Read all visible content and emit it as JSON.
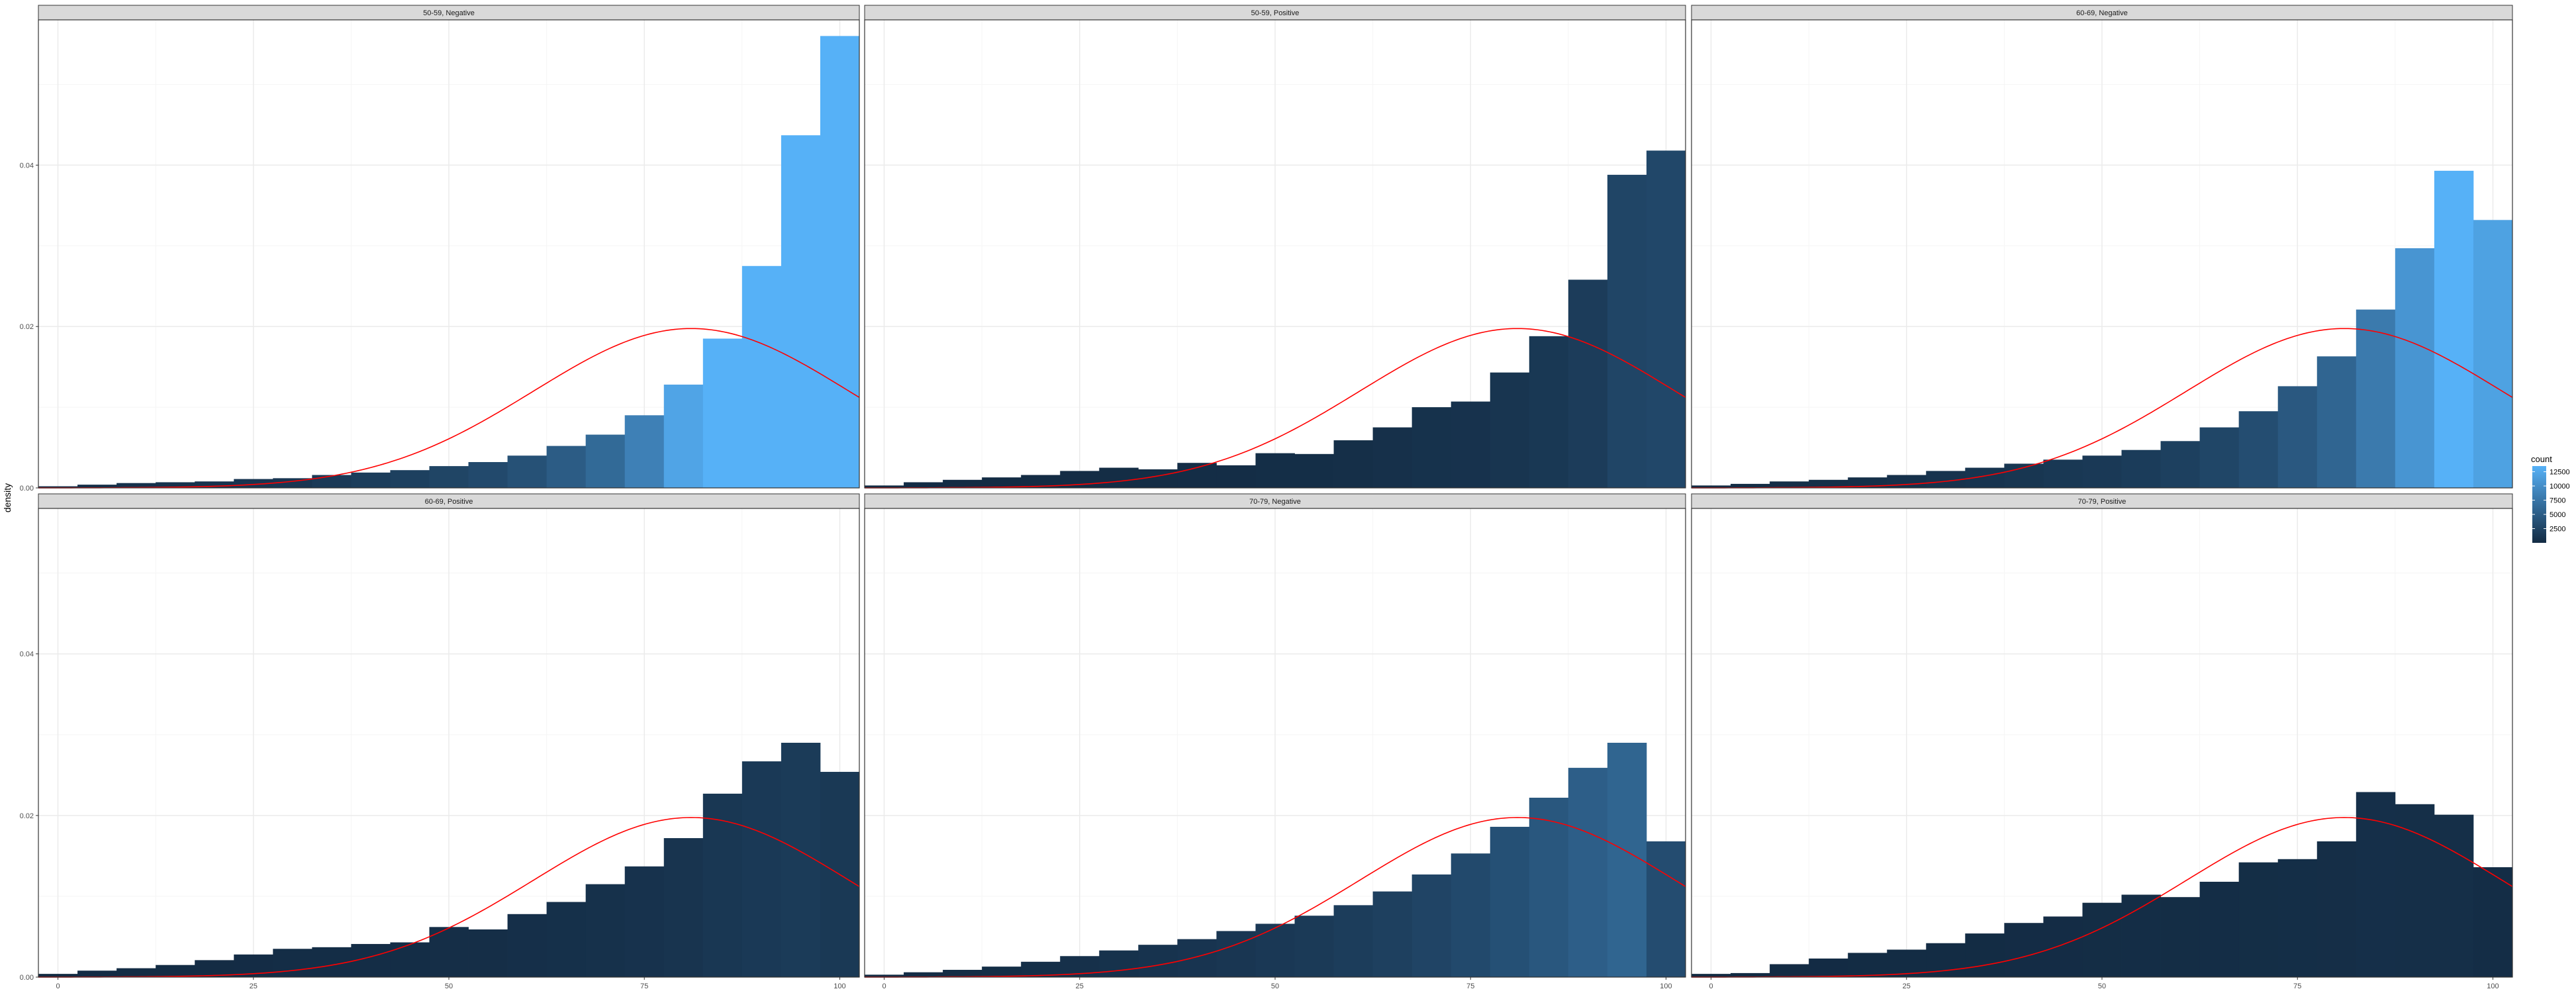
{
  "chart_data": {
    "type": "bar",
    "layout": "facet grid, 2 rows x 3 columns, shared axes",
    "ylabel": "density",
    "xlabel": "",
    "xlim": [
      -2.5,
      102.5
    ],
    "ylim": [
      0,
      0.058
    ],
    "x_ticks": [
      "0",
      "25",
      "50",
      "75",
      "100"
    ],
    "y_ticks": [
      "0.00",
      "0.02",
      "0.04"
    ],
    "bins": [
      0,
      5,
      10,
      15,
      20,
      25,
      30,
      35,
      40,
      45,
      50,
      55,
      60,
      65,
      70,
      75,
      80,
      85,
      90,
      95,
      100
    ],
    "bin_width": 5,
    "grid": true,
    "panels": [
      {
        "label": "50-59, Negative",
        "density": [
          0.0002,
          0.0004,
          0.0006,
          0.0007,
          0.0008,
          0.0011,
          0.0012,
          0.0016,
          0.0019,
          0.0022,
          0.0027,
          0.0032,
          0.004,
          0.0052,
          0.0066,
          0.009,
          0.0128,
          0.0185,
          0.0275,
          0.0437,
          0.056
        ],
        "count": [
          190,
          380,
          570,
          670,
          770,
          1050,
          1150,
          1530,
          1820,
          2100,
          2580,
          3060,
          3830,
          4970,
          6310,
          8610,
          12240,
          17690,
          26290,
          41780,
          53540
        ]
      },
      {
        "label": "50-59, Positive",
        "density": [
          0.0003,
          0.0007,
          0.001,
          0.0013,
          0.0016,
          0.0021,
          0.0025,
          0.0023,
          0.0031,
          0.0028,
          0.0043,
          0.0042,
          0.0059,
          0.0075,
          0.01,
          0.0107,
          0.0143,
          0.0188,
          0.0258,
          0.0388,
          0.0418
        ],
        "count": [
          20,
          50,
          70,
          90,
          110,
          140,
          170,
          160,
          210,
          190,
          290,
          280,
          400,
          510,
          680,
          730,
          970,
          1280,
          1750,
          2640,
          2840
        ]
      },
      {
        "label": "60-69, Negative",
        "density": [
          0.0003,
          0.0005,
          0.0008,
          0.001,
          0.0013,
          0.0016,
          0.0021,
          0.0025,
          0.003,
          0.0035,
          0.004,
          0.0047,
          0.0058,
          0.0075,
          0.0095,
          0.0126,
          0.0163,
          0.0221,
          0.0297,
          0.0393,
          0.0332
        ],
        "count": [
          110,
          180,
          290,
          360,
          470,
          580,
          760,
          900,
          1080,
          1260,
          1440,
          1690,
          2090,
          2700,
          3420,
          4540,
          5870,
          7960,
          10690,
          14150,
          11950
        ]
      },
      {
        "label": "60-69, Positive",
        "density": [
          0.0004,
          0.0008,
          0.0011,
          0.0015,
          0.0021,
          0.0028,
          0.0035,
          0.0037,
          0.0041,
          0.0043,
          0.0062,
          0.0059,
          0.0078,
          0.0093,
          0.0115,
          0.0137,
          0.0172,
          0.0227,
          0.0267,
          0.029,
          0.0254
        ],
        "count": [
          20,
          40,
          60,
          80,
          110,
          150,
          190,
          200,
          220,
          230,
          330,
          320,
          420,
          500,
          620,
          740,
          930,
          1230,
          1440,
          1570,
          1370
        ]
      },
      {
        "label": "70-79, Negative",
        "density": [
          0.0003,
          0.0006,
          0.0009,
          0.0013,
          0.0019,
          0.0026,
          0.0033,
          0.004,
          0.0047,
          0.0057,
          0.0066,
          0.0076,
          0.0089,
          0.0106,
          0.0127,
          0.0153,
          0.0186,
          0.0222,
          0.0259,
          0.029,
          0.0168
        ],
        "count": [
          60,
          120,
          180,
          260,
          380,
          520,
          660,
          800,
          940,
          1140,
          1320,
          1520,
          1780,
          2120,
          2540,
          3060,
          3720,
          4440,
          5180,
          5800,
          3360
        ]
      },
      {
        "label": "70-79, Positive",
        "density": [
          0.0004,
          0.0005,
          0.0016,
          0.0023,
          0.003,
          0.0034,
          0.0042,
          0.0054,
          0.0067,
          0.0075,
          0.0092,
          0.0102,
          0.0099,
          0.0118,
          0.0142,
          0.0146,
          0.0168,
          0.0229,
          0.0214,
          0.0201,
          0.0136
        ],
        "count": [
          10,
          10,
          30,
          40,
          60,
          60,
          80,
          100,
          120,
          140,
          170,
          190,
          180,
          220,
          260,
          270,
          310,
          420,
          390,
          370,
          250
        ]
      }
    ],
    "overlay_curve": {
      "type": "normal density",
      "color": "#ff0000",
      "mean": 81,
      "sd": 20.2,
      "x_range": [
        -2.5,
        102.5
      ]
    },
    "fill_scale": {
      "legend_title": "count",
      "legend_labels": [
        "12500",
        "10000",
        "7500",
        "5000",
        "2500"
      ],
      "low_color": "#132b43",
      "high_color": "#56b1f7",
      "domain": [
        0,
        13500
      ]
    },
    "strip_fill": "#d9d9d9",
    "panel_border": "#333333",
    "grid_major_color": "#ebebeb",
    "grid_minor_color": "#f5f5f5"
  }
}
